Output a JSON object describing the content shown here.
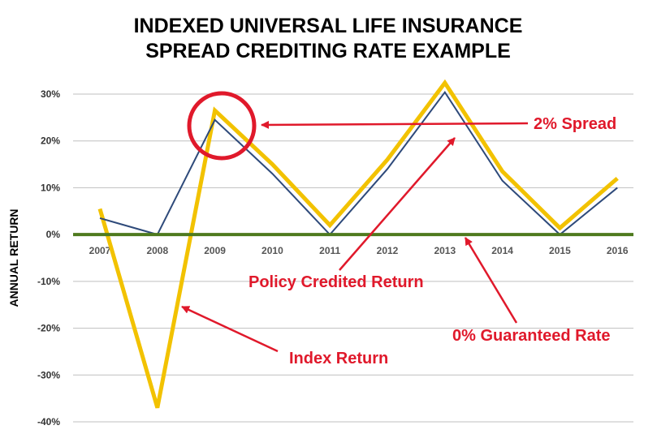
{
  "chart_data": {
    "type": "line",
    "title": [
      "INDEXED UNIVERSAL LIFE INSURANCE",
      "SPREAD CREDITING RATE EXAMPLE"
    ],
    "xlabel": "",
    "ylabel": "ANNUAL RETURN",
    "categories": [
      "2007",
      "2008",
      "2009",
      "2010",
      "2011",
      "2012",
      "2013",
      "2014",
      "2015",
      "2016"
    ],
    "ylim": [
      -40,
      30
    ],
    "yticks": [
      30,
      20,
      10,
      0,
      -10,
      -20,
      -30,
      -40
    ],
    "ytick_labels": [
      "30%",
      "20%",
      "10%",
      "0%",
      "-10%",
      "-20%",
      "-30%",
      "-40%"
    ],
    "grid": "horizontal",
    "series": [
      {
        "values": [
          5.5,
          -37,
          26.5,
          15,
          2,
          16,
          32.4,
          13.5,
          1.4,
          12
        ],
        "color": "#F2C200"
      },
      {
        "values": [
          3.5,
          0,
          24.5,
          13,
          0,
          14,
          30.4,
          11.5,
          0,
          10
        ],
        "color": "#2E4A7A"
      },
      {
        "values": [
          0,
          0,
          0,
          0,
          0,
          0,
          0,
          0,
          0,
          0
        ],
        "color": "#4E7A1E"
      }
    ],
    "annotations": [
      {
        "text": "2% Spread",
        "color": "#E0192B"
      },
      {
        "text": "Policy Credited Return",
        "color": "#E0192B"
      },
      {
        "text": "0% Guaranteed Rate",
        "color": "#E0192B"
      },
      {
        "text": "Index Return",
        "color": "#E0192B"
      }
    ]
  }
}
